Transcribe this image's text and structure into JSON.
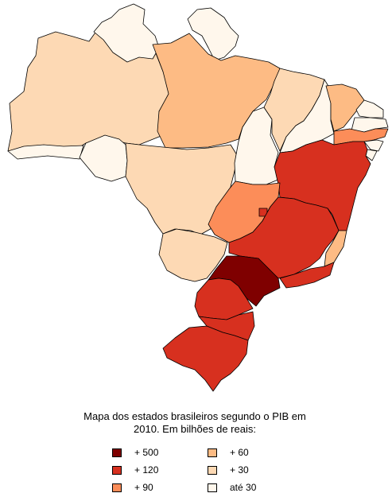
{
  "map": {
    "caption": "Mapa dos estados brasileiros segundo o PIB em 2010. Em bilhões de reais:",
    "legend": [
      {
        "label": "+ 500",
        "color": "#7f0000"
      },
      {
        "label": "+ 120",
        "color": "#d7301f"
      },
      {
        "label": "+ 90",
        "color": "#fc8d59"
      },
      {
        "label": "+ 60",
        "color": "#fdbb84"
      },
      {
        "label": "+ 30",
        "color": "#fdd9b4"
      },
      {
        "label": "até 30",
        "color": "#fff7ec"
      }
    ],
    "regions": [
      {
        "name": "region-amazonas",
        "tier": "+ 30"
      },
      {
        "name": "region-roraima",
        "tier": "até 30"
      },
      {
        "name": "region-amapa",
        "tier": "até 30"
      },
      {
        "name": "region-para",
        "tier": "+ 60"
      },
      {
        "name": "region-acre",
        "tier": "até 30"
      },
      {
        "name": "region-rondonia",
        "tier": "até 30"
      },
      {
        "name": "region-mato-grosso",
        "tier": "+ 30"
      },
      {
        "name": "region-tocantins",
        "tier": "até 30"
      },
      {
        "name": "region-maranhao",
        "tier": "+ 30"
      },
      {
        "name": "region-piaui",
        "tier": "até 30"
      },
      {
        "name": "region-ceara",
        "tier": "+ 60"
      },
      {
        "name": "region-rio-grande-do-norte",
        "tier": "até 30"
      },
      {
        "name": "region-paraiba",
        "tier": "até 30"
      },
      {
        "name": "region-pernambuco",
        "tier": "+ 90"
      },
      {
        "name": "region-alagoas",
        "tier": "até 30"
      },
      {
        "name": "region-sergipe",
        "tier": "até 30"
      },
      {
        "name": "region-bahia",
        "tier": "+ 120"
      },
      {
        "name": "region-goias",
        "tier": "+ 90"
      },
      {
        "name": "region-distrito-federal",
        "tier": "+ 120"
      },
      {
        "name": "region-mato-grosso-do-sul",
        "tier": "+ 30"
      },
      {
        "name": "region-minas-gerais",
        "tier": "+ 120"
      },
      {
        "name": "region-espirito-santo",
        "tier": "+ 60"
      },
      {
        "name": "region-rio-de-janeiro",
        "tier": "+ 120"
      },
      {
        "name": "region-sao-paulo",
        "tier": "+ 500"
      },
      {
        "name": "region-parana",
        "tier": "+ 120"
      },
      {
        "name": "region-santa-catarina",
        "tier": "+ 120"
      },
      {
        "name": "region-rio-grande-do-sul",
        "tier": "+ 120"
      }
    ]
  }
}
